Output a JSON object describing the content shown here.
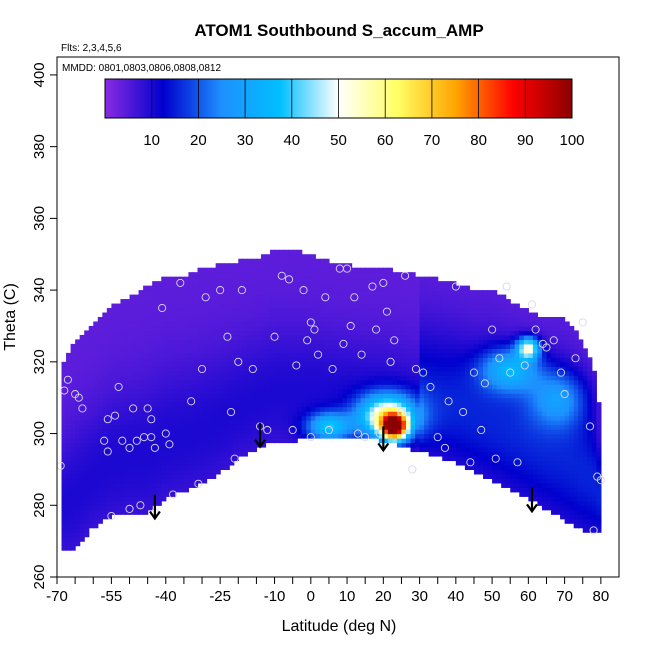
{
  "chart_data": {
    "type": "heatmap",
    "title": "ATOM1 Southbound S_accum_AMP",
    "flights_note": "Flts: 2,3,4,5,6",
    "dates_note": "MMDD: 0801,0803,0806,0808,0812",
    "xlabel": "Latitude (deg N)",
    "ylabel": "Theta (C)",
    "xlim": [
      -70,
      85
    ],
    "ylim": [
      260,
      405
    ],
    "x_ticks": [
      -70,
      -55,
      -40,
      -25,
      -10,
      0,
      10,
      20,
      30,
      40,
      50,
      60,
      70,
      80
    ],
    "x_tick_labels": [
      "-70",
      "-55",
      "-40",
      "-25",
      "-10",
      "0",
      "10",
      "20",
      "30",
      "40",
      "50",
      "60",
      "70",
      "80"
    ],
    "x_minor_ticks": [
      -65,
      -60,
      -50,
      -45,
      -35,
      -30,
      -20,
      -15,
      -5,
      5,
      15,
      25,
      35,
      45,
      55,
      65,
      75
    ],
    "y_ticks": [
      260,
      280,
      300,
      320,
      340,
      360,
      380,
      400
    ],
    "y_tick_labels": [
      "260",
      "280",
      "300",
      "320",
      "340",
      "360",
      "380",
      "400"
    ],
    "colorbar": {
      "range": [
        0,
        100
      ],
      "ticks": [
        10,
        20,
        30,
        40,
        50,
        60,
        70,
        80,
        90,
        100
      ],
      "tick_labels": [
        "10",
        "20",
        "30",
        "40",
        "50",
        "60",
        "70",
        "80",
        "90",
        "100"
      ],
      "stops": [
        "#8a2be2",
        "#0000cd",
        "#1e90ff",
        "#00bfff",
        "#ffffff",
        "#ffff66",
        "#ffa500",
        "#ff0000",
        "#8b0000"
      ]
    },
    "field": {
      "description_units": "S_accum_AMP",
      "upper_boundary": [
        [
          -69,
          318
        ],
        [
          -65,
          326
        ],
        [
          -60,
          330
        ],
        [
          -55,
          336
        ],
        [
          -50,
          338
        ],
        [
          -45,
          341
        ],
        [
          -40,
          344
        ],
        [
          -35,
          344
        ],
        [
          -30,
          346
        ],
        [
          -25,
          347
        ],
        [
          -20,
          348
        ],
        [
          -15,
          349
        ],
        [
          -10,
          351
        ],
        [
          -5,
          351
        ],
        [
          0,
          350
        ],
        [
          5,
          348
        ],
        [
          10,
          347
        ],
        [
          15,
          346
        ],
        [
          20,
          346
        ],
        [
          25,
          345
        ],
        [
          30,
          344
        ],
        [
          35,
          343
        ],
        [
          40,
          342
        ],
        [
          45,
          340
        ],
        [
          50,
          340
        ],
        [
          55,
          337
        ],
        [
          60,
          334
        ],
        [
          65,
          332
        ],
        [
          70,
          332
        ],
        [
          75,
          326
        ],
        [
          78,
          318
        ],
        [
          80,
          305
        ],
        [
          80,
          275
        ]
      ],
      "lower_boundary": [
        [
          80,
          272
        ],
        [
          75,
          273
        ],
        [
          70,
          276
        ],
        [
          60,
          282
        ],
        [
          50,
          287
        ],
        [
          40,
          292
        ],
        [
          30,
          295
        ],
        [
          20,
          298
        ],
        [
          10,
          299
        ],
        [
          0,
          299
        ],
        [
          -5,
          298
        ],
        [
          -10,
          298
        ],
        [
          -15,
          296
        ],
        [
          -20,
          293
        ],
        [
          -25,
          289
        ],
        [
          -30,
          286
        ],
        [
          -35,
          284
        ],
        [
          -40,
          282
        ],
        [
          -45,
          278
        ],
        [
          -50,
          278
        ],
        [
          -55,
          277
        ],
        [
          -60,
          274
        ],
        [
          -65,
          268
        ],
        [
          -69,
          267
        ]
      ],
      "hotspots": [
        {
          "lat": 23,
          "theta": 302,
          "value": 82,
          "spread_lat": 3.5,
          "spread_theta": 3.5
        },
        {
          "lat": 21,
          "theta": 305,
          "value": 48,
          "spread_lat": 8,
          "spread_theta": 6
        },
        {
          "lat": 5,
          "theta": 302,
          "value": 30,
          "spread_lat": 6,
          "spread_theta": 4
        },
        {
          "lat": 60,
          "theta": 324,
          "value": 42,
          "spread_lat": 3,
          "spread_theta": 3
        },
        {
          "lat": 55,
          "theta": 318,
          "value": 25,
          "spread_lat": 8,
          "spread_theta": 6
        },
        {
          "lat": 68,
          "theta": 310,
          "value": 18,
          "spread_lat": 8,
          "spread_theta": 8
        }
      ],
      "background_value": 4,
      "mid_value": 10
    },
    "points": [
      [
        -69,
        291
      ],
      [
        -68,
        312
      ],
      [
        -67,
        315
      ],
      [
        -65,
        311
      ],
      [
        -64,
        310
      ],
      [
        -63,
        307
      ],
      [
        -57,
        298
      ],
      [
        -56,
        295
      ],
      [
        -56,
        304
      ],
      [
        -55,
        277
      ],
      [
        -54,
        305
      ],
      [
        -53,
        313
      ],
      [
        -52,
        298
      ],
      [
        -50,
        279
      ],
      [
        -50,
        296
      ],
      [
        -49,
        307
      ],
      [
        -48,
        298
      ],
      [
        -47,
        280
      ],
      [
        -46,
        299
      ],
      [
        -45,
        307
      ],
      [
        -44,
        304
      ],
      [
        -44,
        299
      ],
      [
        -43,
        278
      ],
      [
        -43,
        296
      ],
      [
        -41,
        335
      ],
      [
        -40,
        300
      ],
      [
        -39,
        297
      ],
      [
        -38,
        283
      ],
      [
        -36,
        342
      ],
      [
        -33,
        309
      ],
      [
        -31,
        286
      ],
      [
        -30,
        318
      ],
      [
        -29,
        338
      ],
      [
        -25,
        340
      ],
      [
        -23,
        327
      ],
      [
        -22,
        306
      ],
      [
        -21,
        293
      ],
      [
        -20,
        320
      ],
      [
        -19,
        340
      ],
      [
        -16,
        318
      ],
      [
        -14,
        302
      ],
      [
        -12,
        301
      ],
      [
        -10,
        327
      ],
      [
        -8,
        344
      ],
      [
        -6,
        343
      ],
      [
        -5,
        301
      ],
      [
        -4,
        319
      ],
      [
        -2,
        340
      ],
      [
        -1,
        326
      ],
      [
        0,
        299
      ],
      [
        0,
        331
      ],
      [
        1,
        329
      ],
      [
        2,
        322
      ],
      [
        4,
        338
      ],
      [
        5,
        301
      ],
      [
        6,
        318
      ],
      [
        8,
        346
      ],
      [
        9,
        325
      ],
      [
        10,
        346
      ],
      [
        11,
        330
      ],
      [
        12,
        338
      ],
      [
        13,
        300
      ],
      [
        14,
        322
      ],
      [
        15,
        299
      ],
      [
        17,
        341
      ],
      [
        18,
        329
      ],
      [
        19,
        300
      ],
      [
        20,
        342
      ],
      [
        21,
        334
      ],
      [
        22,
        320
      ],
      [
        23,
        326
      ],
      [
        25,
        306
      ],
      [
        26,
        344
      ],
      [
        28,
        290
      ],
      [
        29,
        318
      ],
      [
        31,
        317
      ],
      [
        33,
        313
      ],
      [
        35,
        299
      ],
      [
        37,
        296
      ],
      [
        38,
        309
      ],
      [
        40,
        341
      ],
      [
        42,
        306
      ],
      [
        44,
        292
      ],
      [
        45,
        317
      ],
      [
        47,
        301
      ],
      [
        48,
        314
      ],
      [
        50,
        329
      ],
      [
        51,
        293
      ],
      [
        52,
        321
      ],
      [
        54,
        341
      ],
      [
        55,
        317
      ],
      [
        57,
        292
      ],
      [
        59,
        319
      ],
      [
        61,
        336
      ],
      [
        62,
        329
      ],
      [
        64,
        325
      ],
      [
        65,
        324
      ],
      [
        67,
        326
      ],
      [
        69,
        317
      ],
      [
        70,
        311
      ],
      [
        73,
        321
      ],
      [
        75,
        331
      ],
      [
        77,
        302
      ],
      [
        78,
        273
      ],
      [
        79,
        288
      ],
      [
        80,
        287
      ]
    ],
    "arrows": [
      {
        "lat": -43,
        "theta": 283
      },
      {
        "lat": -14,
        "theta": 303
      },
      {
        "lat": 20,
        "theta": 302
      },
      {
        "lat": 61,
        "theta": 285
      }
    ]
  }
}
